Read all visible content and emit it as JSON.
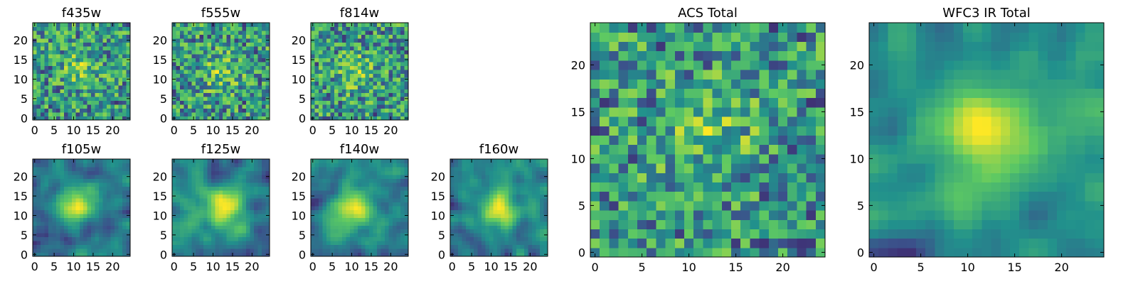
{
  "chart_data": [
    {
      "type": "heatmap",
      "title": "f435w",
      "xlabel": "",
      "ylabel": "",
      "grid": false,
      "xlim": [
        -0.5,
        24.5
      ],
      "ylim": [
        -0.5,
        24.5
      ],
      "xticks": [
        0,
        5,
        10,
        15,
        20
      ],
      "yticks": [
        0,
        5,
        10,
        15,
        20
      ],
      "size": [
        25,
        25
      ],
      "pattern": "noisy",
      "center": [
        12,
        13
      ],
      "seed": 11
    },
    {
      "type": "heatmap",
      "title": "f555w",
      "xlabel": "",
      "ylabel": "",
      "grid": false,
      "xlim": [
        -0.5,
        24.5
      ],
      "ylim": [
        -0.5,
        24.5
      ],
      "xticks": [
        0,
        5,
        10,
        15,
        20
      ],
      "yticks": [
        0,
        5,
        10,
        15,
        20
      ],
      "size": [
        25,
        25
      ],
      "pattern": "noisy",
      "center": [
        12,
        12
      ],
      "seed": 23
    },
    {
      "type": "heatmap",
      "title": "f814w",
      "xlabel": "",
      "ylabel": "",
      "grid": false,
      "xlim": [
        -0.5,
        24.5
      ],
      "ylim": [
        -0.5,
        24.5
      ],
      "xticks": [
        0,
        5,
        10,
        15,
        20
      ],
      "yticks": [
        0,
        5,
        10,
        15,
        20
      ],
      "size": [
        25,
        25
      ],
      "pattern": "noisy",
      "center": [
        11,
        12
      ],
      "seed": 37
    },
    {
      "type": "heatmap",
      "title": "f105w",
      "xlabel": "",
      "ylabel": "",
      "grid": false,
      "xlim": [
        -0.5,
        24.5
      ],
      "ylim": [
        -0.5,
        24.5
      ],
      "xticks": [
        0,
        5,
        10,
        15,
        20
      ],
      "yticks": [
        0,
        5,
        10,
        15,
        20
      ],
      "size": [
        25,
        25
      ],
      "pattern": "smooth",
      "center": [
        11,
        13
      ],
      "seed": 41
    },
    {
      "type": "heatmap",
      "title": "f125w",
      "xlabel": "",
      "ylabel": "",
      "grid": false,
      "xlim": [
        -0.5,
        24.5
      ],
      "ylim": [
        -0.5,
        24.5
      ],
      "xticks": [
        0,
        5,
        10,
        15,
        20
      ],
      "yticks": [
        0,
        5,
        10,
        15,
        20
      ],
      "size": [
        25,
        25
      ],
      "pattern": "smooth",
      "center": [
        13,
        12
      ],
      "seed": 53
    },
    {
      "type": "heatmap",
      "title": "f140w",
      "xlabel": "",
      "ylabel": "",
      "grid": false,
      "xlim": [
        -0.5,
        24.5
      ],
      "ylim": [
        -0.5,
        24.5
      ],
      "xticks": [
        0,
        5,
        10,
        15,
        20
      ],
      "yticks": [
        0,
        5,
        10,
        15,
        20
      ],
      "size": [
        25,
        25
      ],
      "pattern": "smooth",
      "center": [
        10,
        12
      ],
      "seed": 67
    },
    {
      "type": "heatmap",
      "title": "f160w",
      "xlabel": "",
      "ylabel": "",
      "grid": false,
      "xlim": [
        -0.5,
        24.5
      ],
      "ylim": [
        -0.5,
        24.5
      ],
      "xticks": [
        0,
        5,
        10,
        15,
        20
      ],
      "yticks": [
        0,
        5,
        10,
        15,
        20
      ],
      "size": [
        25,
        25
      ],
      "pattern": "smooth",
      "center": [
        12,
        12
      ],
      "seed": 79
    },
    {
      "type": "heatmap",
      "title": "ACS Total",
      "xlabel": "",
      "ylabel": "",
      "grid": false,
      "xlim": [
        -0.5,
        24.5
      ],
      "ylim": [
        -0.5,
        24.5
      ],
      "xticks": [
        0,
        5,
        10,
        15,
        20
      ],
      "yticks": [
        0,
        5,
        10,
        15,
        20
      ],
      "size": [
        25,
        25
      ],
      "pattern": "noisy",
      "center": [
        12,
        13
      ],
      "seed": 83
    },
    {
      "type": "heatmap",
      "title": "WFC3 IR Total",
      "xlabel": "",
      "ylabel": "",
      "grid": false,
      "xlim": [
        -0.5,
        24.5
      ],
      "ylim": [
        -0.5,
        24.5
      ],
      "xticks": [
        0,
        5,
        10,
        15,
        20
      ],
      "yticks": [
        0,
        5,
        10,
        15,
        20
      ],
      "size": [
        25,
        25
      ],
      "pattern": "smooth",
      "center": [
        12,
        13
      ],
      "seed": 97
    }
  ],
  "colormap": [
    "#440154",
    "#3b528b",
    "#21918c",
    "#5ec962",
    "#fde725"
  ]
}
